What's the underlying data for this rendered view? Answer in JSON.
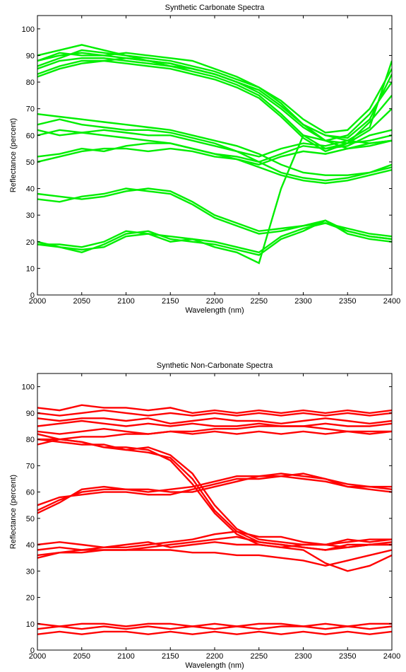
{
  "chart_data": [
    {
      "type": "line",
      "title": "Synthetic Carbonate Spectra",
      "xlabel": "Wavelength (nm)",
      "ylabel": "Reflectance (percent)",
      "xlim": [
        2000,
        2400
      ],
      "ylim": [
        0,
        105
      ],
      "x_ticks": [
        "2000",
        "2050",
        "2100",
        "2150",
        "2200",
        "2250",
        "2300",
        "2350",
        "2400"
      ],
      "y_ticks": [
        "0",
        "10",
        "20",
        "30",
        "40",
        "50",
        "60",
        "70",
        "80",
        "90",
        "100"
      ],
      "grid": false,
      "color": "#00ee00",
      "x": [
        2000,
        2025,
        2050,
        2075,
        2100,
        2125,
        2150,
        2175,
        2200,
        2225,
        2250,
        2275,
        2300,
        2325,
        2350,
        2375,
        2400
      ],
      "series": [
        {
          "values": [
            86,
            89,
            92,
            91,
            90,
            89,
            88,
            86,
            84,
            81,
            78,
            72,
            64,
            60,
            58,
            63,
            88
          ]
        },
        {
          "values": [
            88,
            91,
            90,
            90,
            91,
            90,
            89,
            88,
            85,
            82,
            78,
            73,
            66,
            61,
            62,
            70,
            85
          ]
        },
        {
          "values": [
            82,
            85,
            87,
            88,
            89,
            88,
            87,
            85,
            83,
            80,
            76,
            70,
            63,
            58,
            60,
            68,
            80
          ]
        },
        {
          "values": [
            90,
            92,
            94,
            92,
            90,
            88,
            86,
            85,
            83,
            80,
            77,
            71,
            64,
            60,
            59,
            66,
            83
          ]
        },
        {
          "values": [
            85,
            88,
            89,
            89,
            88,
            87,
            86,
            84,
            82,
            79,
            75,
            68,
            60,
            55,
            56,
            60,
            62
          ]
        },
        {
          "values": [
            88,
            90,
            91,
            90,
            89,
            88,
            87,
            85,
            83,
            80,
            77,
            71,
            64,
            58,
            55,
            57,
            58
          ]
        },
        {
          "values": [
            83,
            86,
            88,
            88,
            87,
            86,
            85,
            83,
            81,
            78,
            74,
            67,
            59,
            54,
            57,
            65,
            75
          ]
        },
        {
          "values": [
            64,
            66,
            64,
            63,
            62,
            62,
            61,
            59,
            57,
            54,
            50,
            46,
            44,
            43,
            44,
            46,
            49
          ]
        },
        {
          "values": [
            62,
            60,
            61,
            60,
            59,
            58,
            57,
            55,
            53,
            51,
            48,
            45,
            43,
            42,
            43,
            45,
            47
          ]
        },
        {
          "values": [
            68,
            67,
            66,
            65,
            64,
            63,
            62,
            60,
            58,
            56,
            53,
            49,
            46,
            45,
            45,
            46,
            48
          ]
        },
        {
          "values": [
            60,
            62,
            61,
            62,
            61,
            60,
            60,
            58,
            56,
            54,
            52,
            55,
            57,
            56,
            58,
            57,
            58
          ]
        },
        {
          "values": [
            52,
            53,
            55,
            54,
            56,
            57,
            57,
            55,
            53,
            52,
            50,
            53,
            56,
            55,
            57,
            58,
            60
          ]
        },
        {
          "values": [
            50,
            52,
            54,
            55,
            55,
            54,
            55,
            54,
            52,
            51,
            49,
            52,
            54,
            53,
            55,
            56,
            58
          ]
        },
        {
          "values": [
            38,
            37,
            36,
            37,
            39,
            40,
            39,
            35,
            30,
            27,
            24,
            25,
            26,
            27,
            25,
            23,
            22
          ]
        },
        {
          "values": [
            36,
            35,
            37,
            38,
            40,
            39,
            38,
            34,
            29,
            26,
            23,
            24,
            26,
            28,
            24,
            22,
            21
          ]
        },
        {
          "values": [
            20,
            18,
            17,
            18,
            22,
            23,
            22,
            21,
            20,
            18,
            16,
            22,
            25,
            27,
            24,
            22,
            21
          ]
        },
        {
          "values": [
            19,
            18,
            16,
            19,
            23,
            24,
            21,
            20,
            19,
            17,
            15,
            21,
            24,
            28,
            23,
            21,
            20
          ]
        },
        {
          "values": [
            19,
            19,
            18,
            20,
            24,
            23,
            20,
            21,
            18,
            16,
            12,
            40,
            60,
            58,
            57,
            62,
            70
          ]
        }
      ]
    },
    {
      "type": "line",
      "title": "Synthetic Non-Carbonate Spectra",
      "xlabel": "Wavelength (nm)",
      "ylabel": "Reflectance (percent)",
      "xlim": [
        2000,
        2400
      ],
      "ylim": [
        0,
        105
      ],
      "x_ticks": [
        "2000",
        "2050",
        "2100",
        "2150",
        "2200",
        "2250",
        "2300",
        "2350",
        "2400"
      ],
      "y_ticks": [
        "0",
        "10",
        "20",
        "30",
        "40",
        "50",
        "60",
        "70",
        "80",
        "90",
        "100"
      ],
      "grid": false,
      "color": "#ff0000",
      "x": [
        2000,
        2025,
        2050,
        2075,
        2100,
        2125,
        2150,
        2175,
        2200,
        2225,
        2250,
        2275,
        2300,
        2325,
        2350,
        2375,
        2400
      ],
      "series": [
        {
          "values": [
            92,
            91,
            93,
            92,
            92,
            91,
            92,
            90,
            91,
            90,
            91,
            90,
            91,
            90,
            91,
            90,
            91
          ]
        },
        {
          "values": [
            90,
            89,
            90,
            91,
            90,
            89,
            90,
            89,
            90,
            89,
            90,
            89,
            90,
            89,
            90,
            89,
            90
          ]
        },
        {
          "values": [
            88,
            87,
            88,
            88,
            87,
            88,
            86,
            87,
            88,
            87,
            87,
            86,
            87,
            88,
            87,
            86,
            87
          ]
        },
        {
          "values": [
            85,
            86,
            87,
            86,
            85,
            86,
            85,
            86,
            85,
            85,
            86,
            85,
            85,
            86,
            85,
            85,
            86
          ]
        },
        {
          "values": [
            83,
            82,
            83,
            84,
            83,
            82,
            83,
            82,
            83,
            82,
            83,
            82,
            83,
            82,
            83,
            82,
            83
          ]
        },
        {
          "values": [
            80,
            80,
            81,
            81,
            82,
            82,
            83,
            83,
            84,
            84,
            85,
            85,
            85,
            84,
            83,
            83,
            83
          ]
        },
        {
          "values": [
            78,
            80,
            79,
            77,
            76,
            77,
            74,
            67,
            55,
            46,
            42,
            41,
            40,
            40,
            41,
            42,
            42
          ]
        },
        {
          "values": [
            80,
            79,
            78,
            78,
            76,
            75,
            73,
            65,
            53,
            45,
            41,
            40,
            39,
            38,
            39,
            40,
            41
          ]
        },
        {
          "values": [
            82,
            80,
            79,
            77,
            77,
            76,
            72,
            63,
            52,
            44,
            40,
            39,
            38,
            33,
            30,
            32,
            36
          ]
        },
        {
          "values": [
            53,
            57,
            60,
            61,
            61,
            60,
            61,
            62,
            64,
            66,
            66,
            67,
            66,
            65,
            63,
            62,
            61
          ]
        },
        {
          "values": [
            55,
            58,
            59,
            60,
            60,
            59,
            59,
            61,
            63,
            65,
            65,
            66,
            65,
            64,
            62,
            61,
            60
          ]
        },
        {
          "values": [
            52,
            56,
            61,
            62,
            61,
            61,
            60,
            60,
            62,
            64,
            66,
            66,
            67,
            65,
            62,
            62,
            62
          ]
        },
        {
          "values": [
            38,
            39,
            38,
            39,
            39,
            40,
            41,
            42,
            44,
            45,
            43,
            43,
            41,
            40,
            42,
            41,
            42
          ]
        },
        {
          "values": [
            36,
            37,
            38,
            38,
            38,
            39,
            40,
            41,
            42,
            43,
            41,
            40,
            39,
            38,
            40,
            40,
            40
          ]
        },
        {
          "values": [
            40,
            41,
            40,
            39,
            40,
            41,
            39,
            40,
            41,
            40,
            40,
            39,
            40,
            40,
            39,
            40,
            40
          ]
        },
        {
          "values": [
            35,
            37,
            37,
            38,
            38,
            38,
            38,
            37,
            37,
            36,
            36,
            35,
            34,
            32,
            34,
            36,
            38
          ]
        },
        {
          "values": [
            8,
            9,
            8,
            9,
            8,
            9,
            8,
            9,
            8,
            9,
            8,
            9,
            9,
            8,
            9,
            8,
            9
          ]
        },
        {
          "values": [
            6,
            7,
            6,
            7,
            7,
            6,
            7,
            6,
            7,
            6,
            7,
            6,
            7,
            6,
            7,
            6,
            7
          ]
        },
        {
          "values": [
            10,
            9,
            10,
            10,
            9,
            10,
            10,
            9,
            10,
            9,
            10,
            10,
            9,
            10,
            9,
            10,
            10
          ]
        }
      ]
    }
  ]
}
